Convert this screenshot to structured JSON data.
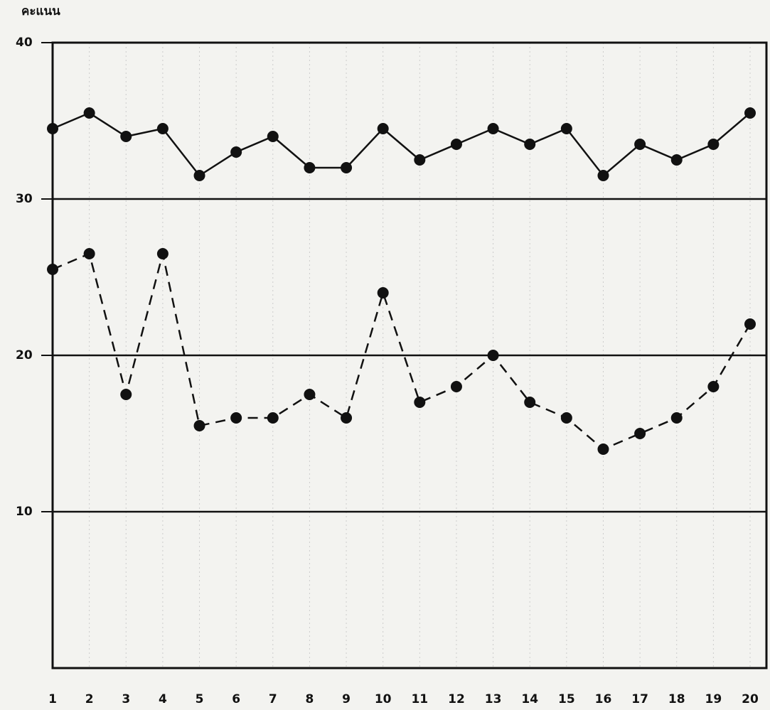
{
  "chart_data": {
    "type": "line",
    "y_label": "คะแนน",
    "categories": [
      "1",
      "2",
      "3",
      "4",
      "5",
      "6",
      "7",
      "8",
      "9",
      "10",
      "11",
      "12",
      "13",
      "14",
      "15",
      "16",
      "17",
      "18",
      "19",
      "20"
    ],
    "series": [
      {
        "color": "#111111",
        "line_style": "solid",
        "values": [
          34.5,
          35.5,
          34,
          34.5,
          31.5,
          33,
          34,
          32,
          32,
          34.5,
          32.5,
          33.5,
          34.5,
          33.5,
          34.5,
          31.5,
          33.5,
          32.5,
          33.5,
          35.5
        ]
      },
      {
        "color": "#111111",
        "line_style": "dashed",
        "values": [
          25.5,
          26.5,
          17.5,
          26.5,
          15.5,
          16,
          16,
          17.5,
          16,
          24,
          17,
          18,
          20,
          17,
          16,
          14,
          15,
          16,
          18,
          22
        ]
      }
    ],
    "ylim": [
      0,
      40
    ],
    "yticks": [
      10,
      20,
      30,
      40
    ],
    "grid": true
  }
}
